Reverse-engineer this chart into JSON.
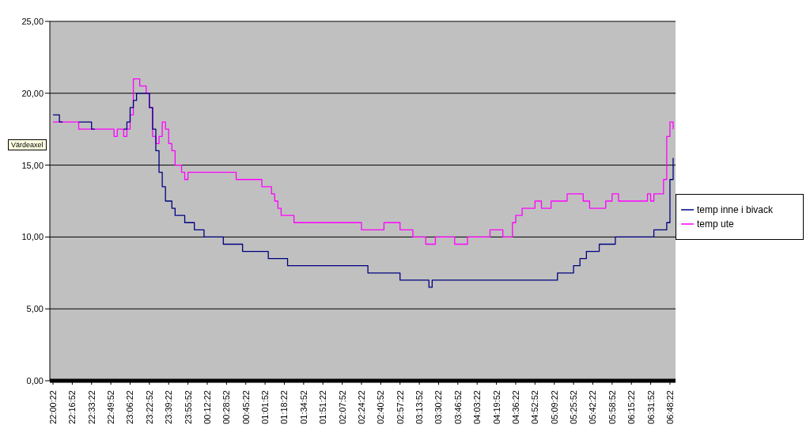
{
  "chart_data": {
    "type": "step",
    "annotations": [
      "Värdeaxel"
    ],
    "categories": [
      "22:00:22",
      null,
      null,
      null,
      null,
      null,
      "22:16:52",
      null,
      null,
      null,
      null,
      null,
      "22:33:22",
      null,
      null,
      null,
      null,
      null,
      "22:49:52",
      null,
      null,
      null,
      null,
      null,
      "23:06:22",
      null,
      null,
      null,
      null,
      null,
      "23:22:52",
      null,
      null,
      null,
      null,
      null,
      "23:39:22",
      null,
      null,
      null,
      null,
      null,
      "23:55:52",
      null,
      null,
      null,
      null,
      null,
      "00:12:22",
      null,
      null,
      null,
      null,
      null,
      "00:28:52",
      null,
      null,
      null,
      null,
      null,
      "00:45:22",
      null,
      null,
      null,
      null,
      null,
      "01:01:52",
      null,
      null,
      null,
      null,
      null,
      "01:18:22",
      null,
      null,
      null,
      null,
      null,
      "01:34:52",
      null,
      null,
      null,
      null,
      null,
      "01:51:22",
      null,
      null,
      null,
      null,
      null,
      "02:07:52",
      null,
      null,
      null,
      null,
      null,
      "02:24:22",
      null,
      null,
      null,
      null,
      null,
      "02:40:52",
      null,
      null,
      null,
      null,
      null,
      "02:57:22",
      null,
      null,
      null,
      null,
      null,
      "03:13:52",
      null,
      null,
      null,
      null,
      null,
      "03:30:22",
      null,
      null,
      null,
      null,
      null,
      "03:46:52",
      null,
      null,
      null,
      null,
      null,
      "04:03:22",
      null,
      null,
      null,
      null,
      null,
      "04:19:52",
      null,
      null,
      null,
      null,
      null,
      "04:36:22",
      null,
      null,
      null,
      null,
      null,
      "04:52:52",
      null,
      null,
      null,
      null,
      null,
      "05:09:22",
      null,
      null,
      null,
      null,
      null,
      "05:25:52",
      null,
      null,
      null,
      null,
      null,
      "05:42:22",
      null,
      null,
      null,
      null,
      null,
      "05:58:52",
      null,
      null,
      null,
      null,
      null,
      "06:15:22",
      null,
      null,
      null,
      null,
      null,
      "06:31:52",
      null,
      null,
      null,
      null,
      null,
      "06:48:22",
      null
    ],
    "ylim": [
      0,
      25
    ],
    "yticks": [
      {
        "value": 0,
        "label": "0,00"
      },
      {
        "value": 5,
        "label": "5,00"
      },
      {
        "value": 10,
        "label": "10,00"
      },
      {
        "value": 15,
        "label": "15,00"
      },
      {
        "value": 20,
        "label": "20,00"
      },
      {
        "value": 25,
        "label": "25,00"
      }
    ],
    "grid": "y",
    "legend": "right",
    "marker": "none",
    "series": [
      {
        "name": "temp inne i bivack",
        "color": "#000080",
        "values": [
          18.5,
          18.5,
          18,
          18,
          null,
          null,
          null,
          null,
          18,
          18,
          18,
          18,
          17.5,
          17.5,
          null,
          null,
          null,
          null,
          null,
          null,
          null,
          null,
          17.5,
          18,
          19,
          19.5,
          20,
          20,
          20,
          20,
          19,
          17.5,
          16,
          14.5,
          13.5,
          12.5,
          12.5,
          12,
          11.5,
          11.5,
          11.5,
          11,
          11,
          11,
          10.5,
          10.5,
          10.5,
          10,
          10,
          10,
          10,
          10,
          10,
          9.5,
          9.5,
          9.5,
          9.5,
          9.5,
          9.5,
          9,
          9,
          9,
          9,
          9,
          9,
          9,
          9,
          8.5,
          8.5,
          8.5,
          8.5,
          8.5,
          8.5,
          8,
          8,
          8,
          8,
          8,
          8,
          8,
          8,
          8,
          8,
          8,
          8,
          8,
          8,
          8,
          8,
          8,
          8,
          8,
          8,
          8,
          8,
          8,
          8,
          8,
          7.5,
          7.5,
          7.5,
          7.5,
          7.5,
          7.5,
          7.5,
          7.5,
          7.5,
          7.5,
          7,
          7,
          7,
          7,
          7,
          7,
          7,
          7,
          7,
          6.5,
          7,
          7,
          7,
          7,
          7,
          7,
          7,
          7,
          7,
          7,
          7,
          7,
          7,
          7,
          7,
          7,
          7,
          7,
          7,
          7,
          7,
          7,
          7,
          7,
          7,
          7,
          7,
          7,
          7,
          7,
          7,
          7,
          7,
          7,
          7,
          7,
          7,
          7,
          7,
          7.5,
          7.5,
          7.5,
          7.5,
          7.5,
          8,
          8,
          8.5,
          8.5,
          9,
          9,
          9,
          9,
          9.5,
          9.5,
          9.5,
          9.5,
          9.5,
          10,
          10,
          10,
          10,
          10,
          10,
          10,
          10,
          10,
          10,
          10,
          10,
          10.5,
          10.5,
          10.5,
          10.5,
          11,
          14,
          15.5
        ]
      },
      {
        "name": "temp ute",
        "color": "#ff00ff",
        "values": [
          18,
          18,
          18,
          18,
          18,
          18,
          18,
          18,
          17.5,
          17.5,
          17.5,
          17.5,
          17.5,
          17.5,
          17.5,
          17.5,
          17.5,
          17.5,
          17.5,
          17,
          17.5,
          17.5,
          17,
          17.5,
          18.5,
          21,
          21,
          20.5,
          20.5,
          20,
          19,
          17,
          16.5,
          17,
          18,
          17.5,
          16.5,
          16,
          15,
          15,
          14.5,
          14,
          14.5,
          14.5,
          14.5,
          14.5,
          14.5,
          14.5,
          14.5,
          14.5,
          14.5,
          14.5,
          14.5,
          14.5,
          14.5,
          14.5,
          14.5,
          14,
          14,
          14,
          14,
          14,
          14,
          14,
          14,
          13.5,
          13.5,
          13.5,
          13,
          12.5,
          12,
          11.5,
          11.5,
          11.5,
          11.5,
          11,
          11,
          11,
          11,
          11,
          11,
          11,
          11,
          11,
          11,
          11,
          11,
          11,
          11,
          11,
          11,
          11,
          11,
          11,
          11,
          11,
          10.5,
          10.5,
          10.5,
          10.5,
          10.5,
          10.5,
          10.5,
          11,
          11,
          11,
          11,
          11,
          10.5,
          10.5,
          10.5,
          10.5,
          10,
          10,
          10,
          10,
          9.5,
          9.5,
          9.5,
          10,
          10,
          10,
          10,
          10,
          10,
          9.5,
          9.5,
          9.5,
          9.5,
          10,
          10,
          10,
          10,
          10,
          10,
          10,
          10.5,
          10.5,
          10.5,
          10.5,
          10,
          10,
          10,
          11,
          11.5,
          11.5,
          12,
          12,
          12,
          12,
          12.5,
          12.5,
          12,
          12,
          12,
          12.5,
          12.5,
          12.5,
          12.5,
          12.5,
          13,
          13,
          13,
          13,
          13,
          12.5,
          12.5,
          12,
          12,
          12,
          12,
          12,
          12.5,
          12.5,
          13,
          13,
          12.5,
          12.5,
          12.5,
          12.5,
          12.5,
          12.5,
          12.5,
          12.5,
          12.5,
          13,
          12.5,
          13,
          13,
          13,
          14,
          17,
          18,
          17.5
        ]
      }
    ]
  }
}
